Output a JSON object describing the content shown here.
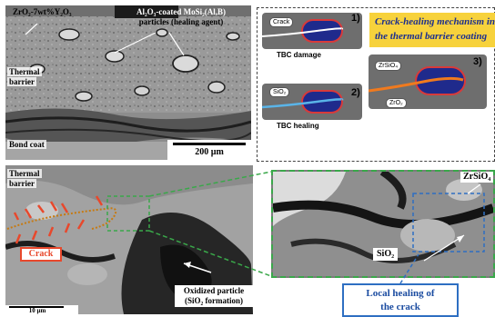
{
  "top_sem": {
    "label_ysz": "ZrO₂-7wt%Y₂O₃",
    "label_particles_line1": "Al₂O₃-coated MoSi₂(Al,B)",
    "label_particles_line2": "particles (healing agent)",
    "label_thermal_1": "Thermal",
    "label_thermal_2": "barrier",
    "label_bond_coat": "Bond coat",
    "scale_label": "200 µm"
  },
  "schematic": {
    "title_line1": "Crack-healing mechanism in",
    "title_line2": "the thermal barrier coating",
    "step1_number": "1)",
    "step1_label": "Crack",
    "step1_caption": "TBC damage",
    "step2_number": "2)",
    "step2_label": "SiO₂",
    "step2_caption": "TBC healing",
    "step3_number": "3)",
    "step3_label_top": "ZrSiO₄",
    "step3_label_bottom": "ZrO₂"
  },
  "bottom_left_sem": {
    "label_thermal_1": "Thermal",
    "label_thermal_2": "barrier",
    "crack_label": "Crack",
    "oxidized_line1": "Oxidized particle",
    "oxidized_line2": "(SiO₂ formation)",
    "scale_label": "10 µm"
  },
  "bottom_right_sem": {
    "label_zrsio4": "ZrSiO₄",
    "label_sio2": "SiO₂",
    "healing_line1": "Local healing of",
    "healing_line2": "the crack"
  },
  "colors": {
    "accent_yellow": "#f7d23c",
    "title_blue": "#1c2f8f",
    "crack_red": "#e8482c",
    "healing_blue": "#2e6fc2",
    "zoom_green": "#3aa84a",
    "particle_blue": "#1f2a8c",
    "particle_outline": "#d83a3a"
  }
}
